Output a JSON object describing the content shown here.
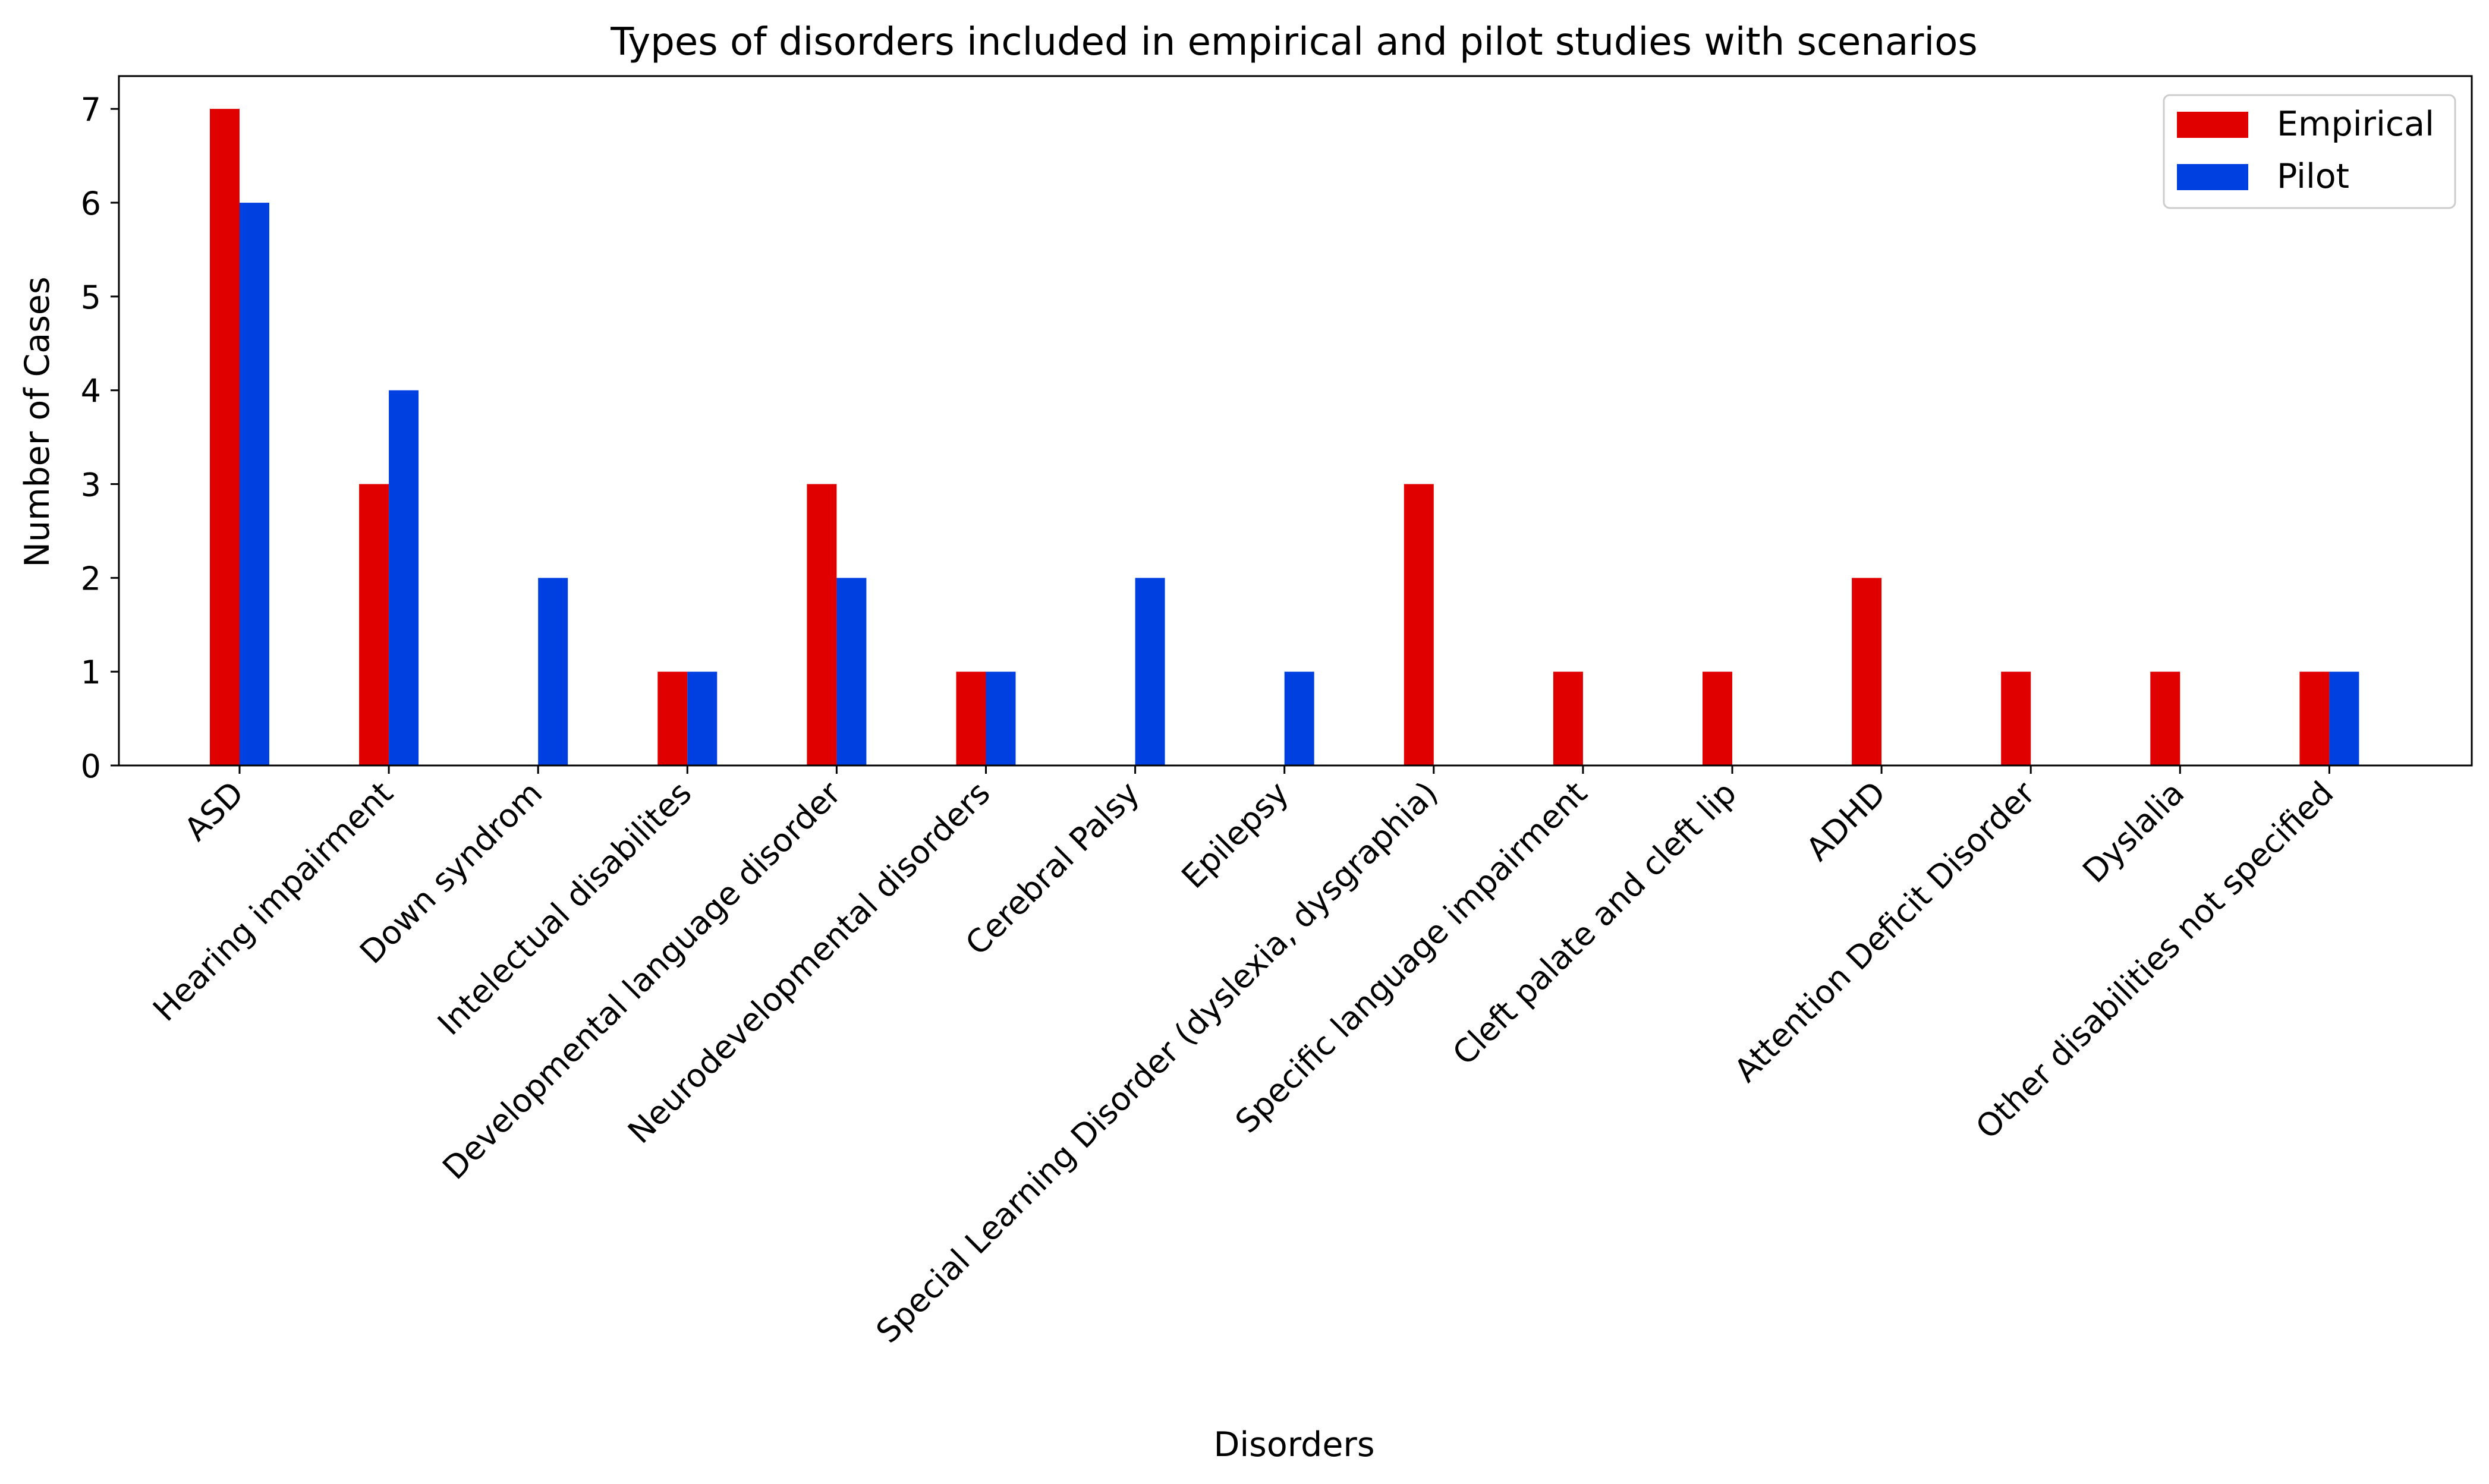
{
  "chart_data": {
    "type": "bar",
    "title": "Types of disorders included in empirical and pilot studies with scenarios",
    "xlabel": "Disorders",
    "ylabel": "Number of Cases",
    "ylim": [
      0,
      7.35
    ],
    "yticks": [
      0,
      1,
      2,
      3,
      4,
      5,
      6,
      7
    ],
    "grid": false,
    "legend_position": "top-right",
    "categories": [
      "ASD",
      "Hearing impairment",
      "Down syndrom",
      "Intelectual disabilites",
      "Developmental language disorder",
      "Neurodevelopmental disorders",
      "Cerebral Palsy",
      "Epilepsy",
      "Special Learning Disorder (dyslexia, dysgraphia)",
      "Specific language impairment",
      "Cleft palate and cleft lip",
      "ADHD",
      "Attention Deficit Disorder",
      "Dyslalia",
      "Other disabilities not specified"
    ],
    "series": [
      {
        "name": "Empirical",
        "color": "#e00000",
        "values": [
          7,
          3,
          0,
          1,
          3,
          1,
          0,
          0,
          3,
          1,
          1,
          2,
          1,
          1,
          1
        ]
      },
      {
        "name": "Pilot",
        "color": "#0040e0",
        "values": [
          6,
          4,
          2,
          1,
          2,
          1,
          2,
          1,
          0,
          0,
          0,
          0,
          0,
          0,
          1
        ]
      }
    ]
  }
}
